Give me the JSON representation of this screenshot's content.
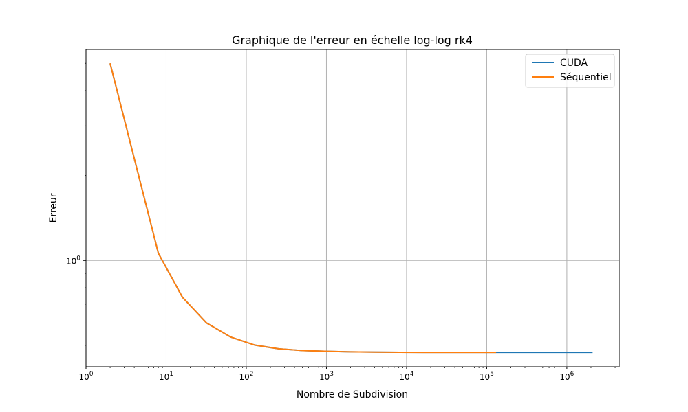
{
  "chart_data": {
    "type": "line",
    "title": "Graphique de l'erreur en échelle log-log rk4",
    "xlabel": "Nombre de Subdivision",
    "ylabel": "Erreur",
    "x_scale": "log",
    "y_scale": "log",
    "xlim": [
      1,
      4500000
    ],
    "ylim": [
      0.42,
      5.6
    ],
    "grid": true,
    "legend_position": "upper-right",
    "x_major_ticks": [
      {
        "value": 1,
        "base": "10",
        "exp": "0"
      },
      {
        "value": 10,
        "base": "10",
        "exp": "1"
      },
      {
        "value": 100,
        "base": "10",
        "exp": "2"
      },
      {
        "value": 1000,
        "base": "10",
        "exp": "3"
      },
      {
        "value": 10000,
        "base": "10",
        "exp": "4"
      },
      {
        "value": 100000,
        "base": "10",
        "exp": "5"
      },
      {
        "value": 1000000,
        "base": "10",
        "exp": "6"
      }
    ],
    "y_major_ticks": [
      {
        "value": 1,
        "base": "10",
        "exp": "0"
      }
    ],
    "series": [
      {
        "name": "CUDA",
        "color": "#1f77b4",
        "x": [
          2,
          4,
          8,
          16,
          32,
          64,
          128,
          256,
          512,
          1024,
          2048,
          4096,
          8192,
          16384,
          32768,
          65536,
          131072,
          262144,
          524288,
          1048576,
          2097152
        ],
        "y": [
          5.0,
          2.3,
          1.06,
          0.74,
          0.6,
          0.535,
          0.501,
          0.486,
          0.479,
          0.476,
          0.474,
          0.473,
          0.4725,
          0.4722,
          0.472,
          0.472,
          0.472,
          0.472,
          0.472,
          0.472,
          0.472
        ]
      },
      {
        "name": "Séquentiel",
        "color": "#ff7f0e",
        "x": [
          2,
          4,
          8,
          16,
          32,
          64,
          128,
          256,
          512,
          1024,
          2048,
          4096,
          8192,
          16384,
          32768,
          65536,
          131072
        ],
        "y": [
          5.0,
          2.3,
          1.06,
          0.74,
          0.6,
          0.535,
          0.501,
          0.486,
          0.479,
          0.476,
          0.474,
          0.473,
          0.4725,
          0.4722,
          0.472,
          0.472,
          0.472
        ]
      }
    ]
  }
}
